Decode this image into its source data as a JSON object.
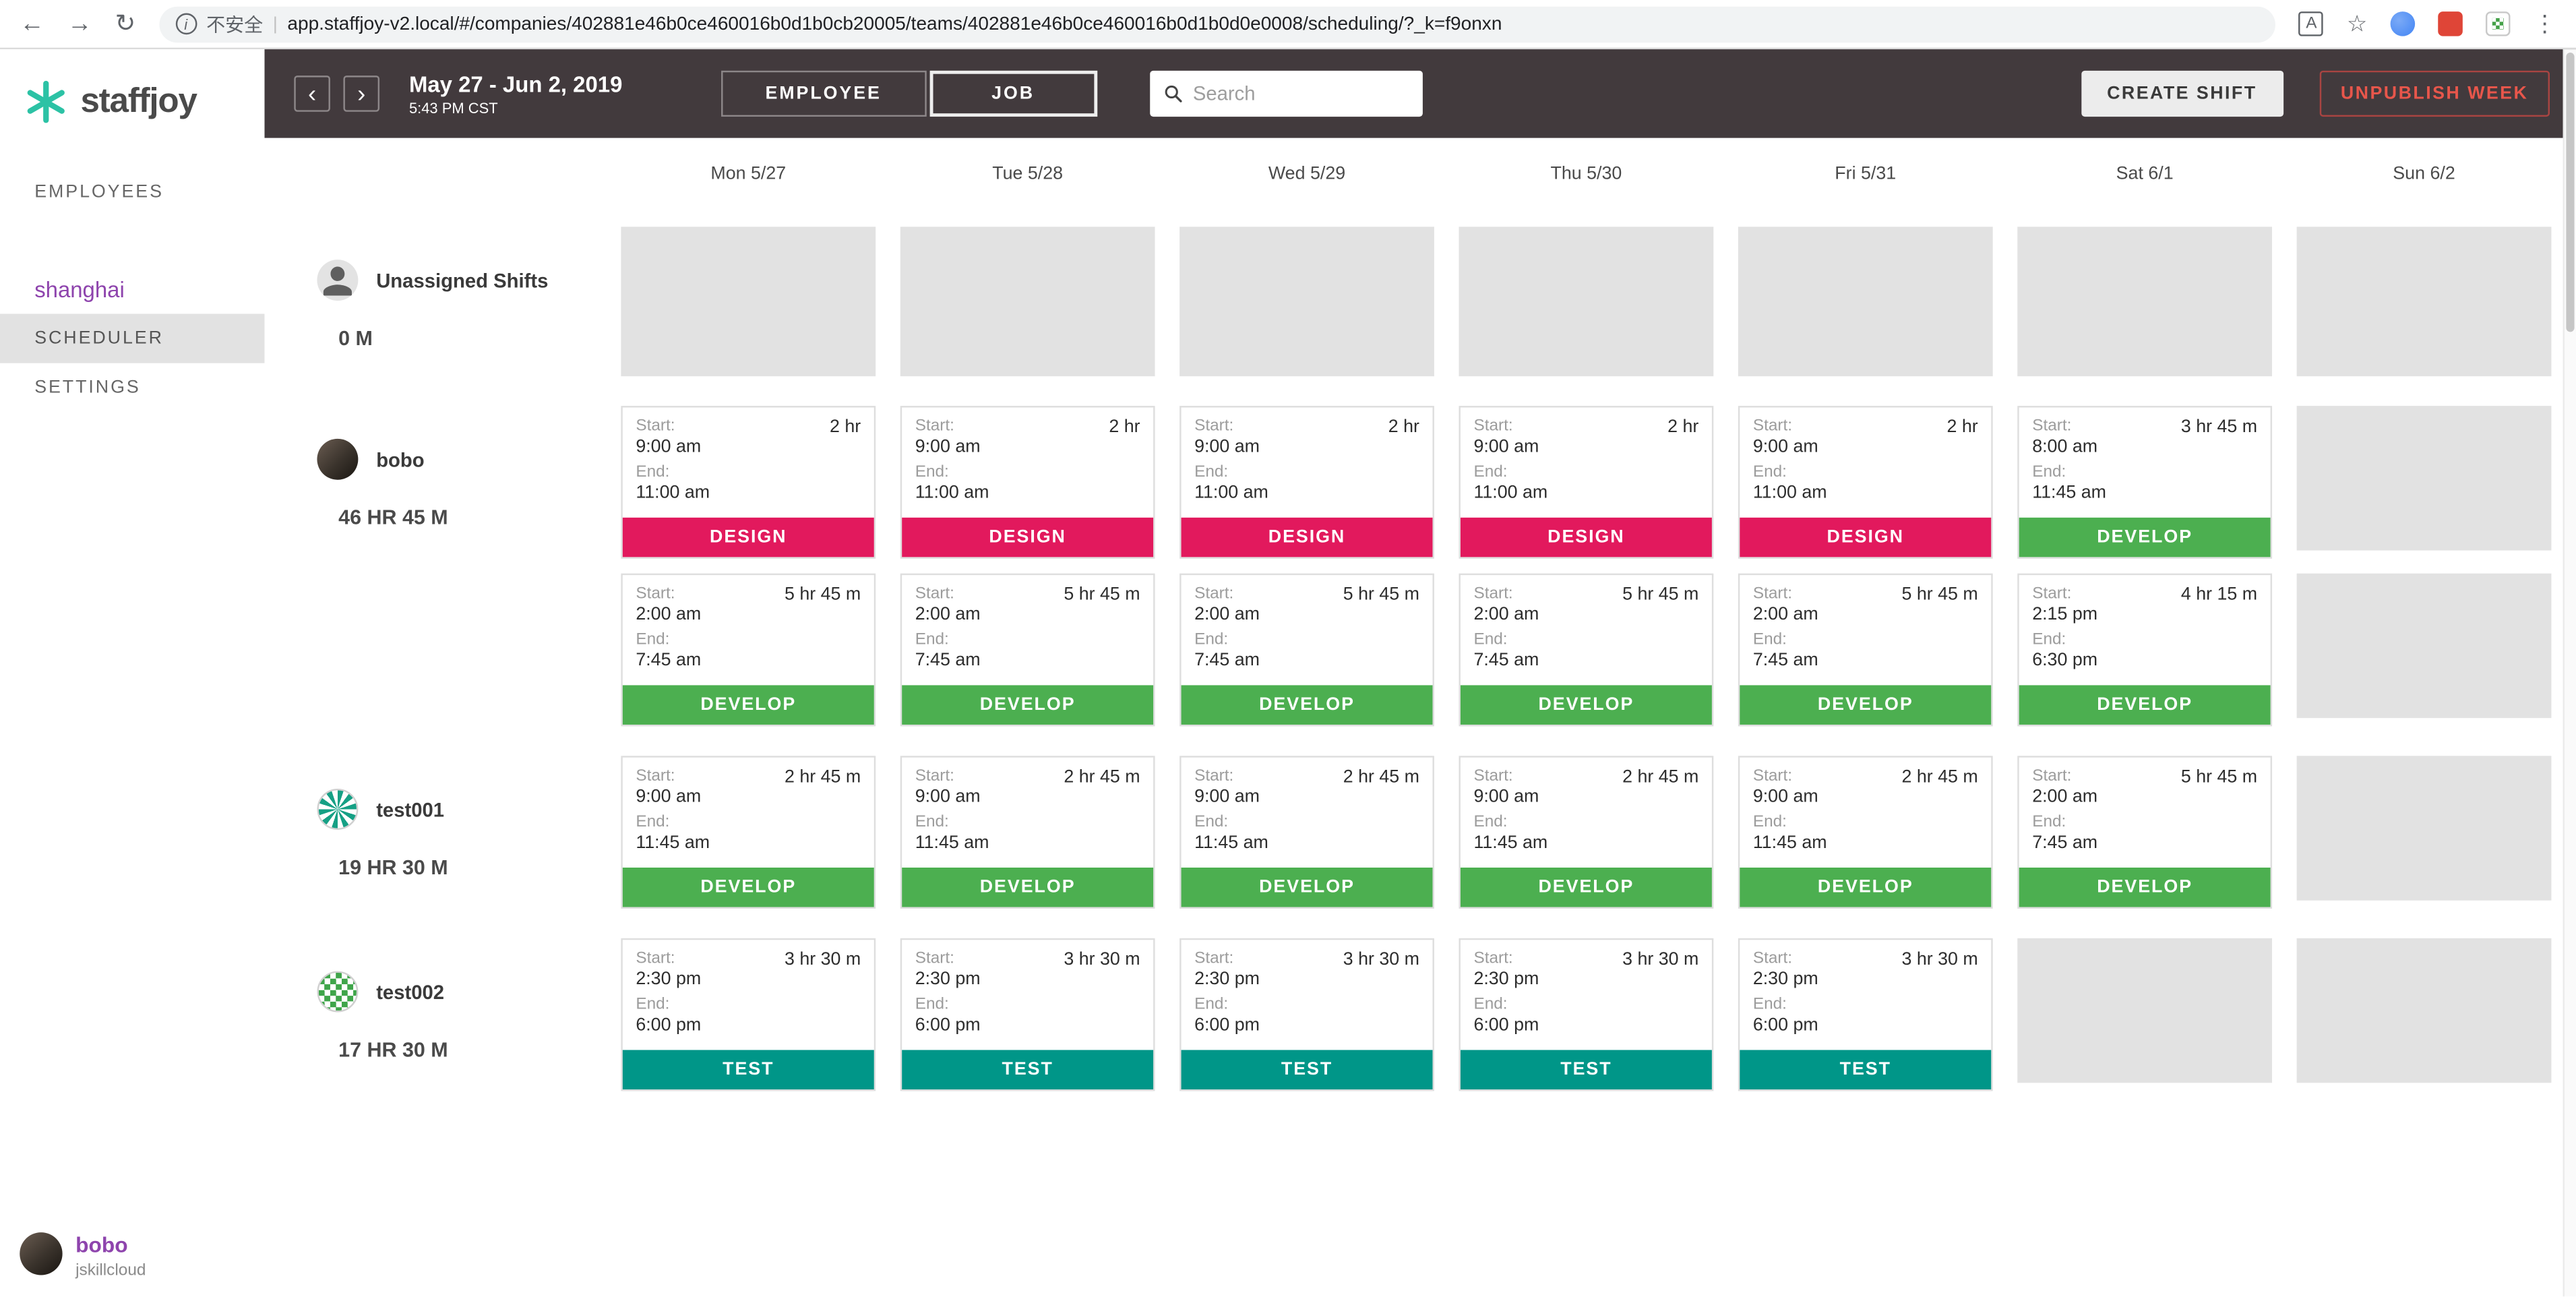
{
  "browser": {
    "security_label": "不安全",
    "url": "app.staffjoy-v2.local/#/companies/402881e46b0ce460016b0d1b0cb20005/teams/402881e46b0ce460016b0d1b0d0e0008/scheduling/?_k=f9onxn"
  },
  "icons": {
    "back": "←",
    "forward": "→",
    "reload": "↻",
    "info": "i",
    "divider": "|",
    "translate": "A",
    "star": "☆",
    "menu": "⋮",
    "prev_week": "‹",
    "next_week": "›"
  },
  "colors": {
    "brand_teal": "#2cc2a5",
    "accent_purple": "#8e44ad",
    "header_dark": "#423a3d",
    "danger_red": "#e8564b",
    "design_pink": "#e2195d",
    "develop_green": "#4caf50",
    "test_teal": "#009688"
  },
  "sidebar": {
    "logo_text": "staffjoy",
    "nav_employees": "EMPLOYEES",
    "team_name": "shanghai",
    "team_items": [
      {
        "label": "SCHEDULER",
        "active": true
      },
      {
        "label": "SETTINGS",
        "active": false
      }
    ],
    "user": {
      "name": "bobo",
      "subtitle": "jskillcloud"
    }
  },
  "topbar": {
    "date_range": "May 27 - Jun 2, 2019",
    "time": "5:43 PM CST",
    "toggle_employee": "EMPLOYEE",
    "toggle_job": "JOB",
    "search_placeholder": "Search",
    "search_value": "",
    "create_shift": "CREATE SHIFT",
    "unpublish_week": "UNPUBLISH WEEK"
  },
  "calendar": {
    "days": [
      "Mon 5/27",
      "Tue 5/28",
      "Wed 5/29",
      "Thu 5/30",
      "Fri 5/31",
      "Sat 6/1",
      "Sun 6/2"
    ],
    "start_label": "Start:",
    "end_label": "End:",
    "job_colors": {
      "DESIGN": "#e2195d",
      "DEVELOP": "#4caf50",
      "TEST": "#009688"
    },
    "employees": [
      {
        "name": "Unassigned Shifts",
        "hours": "0 M",
        "avatar": "person",
        "tall_placeholders": true,
        "rows": [
          [
            null,
            null,
            null,
            null,
            null,
            null,
            null
          ]
        ]
      },
      {
        "name": "bobo",
        "hours": "46 HR 45 M",
        "avatar": "photo",
        "rows": [
          [
            {
              "start": "9:00 am",
              "end": "11:00 am",
              "duration": "2 hr",
              "job": "DESIGN"
            },
            {
              "start": "9:00 am",
              "end": "11:00 am",
              "duration": "2 hr",
              "job": "DESIGN"
            },
            {
              "start": "9:00 am",
              "end": "11:00 am",
              "duration": "2 hr",
              "job": "DESIGN"
            },
            {
              "start": "9:00 am",
              "end": "11:00 am",
              "duration": "2 hr",
              "job": "DESIGN"
            },
            {
              "start": "9:00 am",
              "end": "11:00 am",
              "duration": "2 hr",
              "job": "DESIGN"
            },
            {
              "start": "8:00 am",
              "end": "11:45 am",
              "duration": "3 hr 45 m",
              "job": "DEVELOP"
            },
            null
          ],
          [
            {
              "start": "2:00 am",
              "end": "7:45 am",
              "duration": "5 hr 45 m",
              "job": "DEVELOP"
            },
            {
              "start": "2:00 am",
              "end": "7:45 am",
              "duration": "5 hr 45 m",
              "job": "DEVELOP"
            },
            {
              "start": "2:00 am",
              "end": "7:45 am",
              "duration": "5 hr 45 m",
              "job": "DEVELOP"
            },
            {
              "start": "2:00 am",
              "end": "7:45 am",
              "duration": "5 hr 45 m",
              "job": "DEVELOP"
            },
            {
              "start": "2:00 am",
              "end": "7:45 am",
              "duration": "5 hr 45 m",
              "job": "DEVELOP"
            },
            {
              "start": "2:15 pm",
              "end": "6:30 pm",
              "duration": "4 hr 15 m",
              "job": "DEVELOP"
            },
            null
          ]
        ]
      },
      {
        "name": "test001",
        "hours": "19 HR 30 M",
        "avatar": "identicon-teal",
        "rows": [
          [
            {
              "start": "9:00 am",
              "end": "11:45 am",
              "duration": "2 hr 45 m",
              "job": "DEVELOP"
            },
            {
              "start": "9:00 am",
              "end": "11:45 am",
              "duration": "2 hr 45 m",
              "job": "DEVELOP"
            },
            {
              "start": "9:00 am",
              "end": "11:45 am",
              "duration": "2 hr 45 m",
              "job": "DEVELOP"
            },
            {
              "start": "9:00 am",
              "end": "11:45 am",
              "duration": "2 hr 45 m",
              "job": "DEVELOP"
            },
            {
              "start": "9:00 am",
              "end": "11:45 am",
              "duration": "2 hr 45 m",
              "job": "DEVELOP"
            },
            {
              "start": "2:00 am",
              "end": "7:45 am",
              "duration": "5 hr 45 m",
              "job": "DEVELOP"
            },
            null
          ]
        ]
      },
      {
        "name": "test002",
        "hours": "17 HR 30 M",
        "avatar": "identicon-green",
        "rows": [
          [
            {
              "start": "2:30 pm",
              "end": "6:00 pm",
              "duration": "3 hr 30 m",
              "job": "TEST"
            },
            {
              "start": "2:30 pm",
              "end": "6:00 pm",
              "duration": "3 hr 30 m",
              "job": "TEST"
            },
            {
              "start": "2:30 pm",
              "end": "6:00 pm",
              "duration": "3 hr 30 m",
              "job": "TEST"
            },
            {
              "start": "2:30 pm",
              "end": "6:00 pm",
              "duration": "3 hr 30 m",
              "job": "TEST"
            },
            {
              "start": "2:30 pm",
              "end": "6:00 pm",
              "duration": "3 hr 30 m",
              "job": "TEST"
            },
            null,
            null
          ]
        ]
      }
    ]
  }
}
